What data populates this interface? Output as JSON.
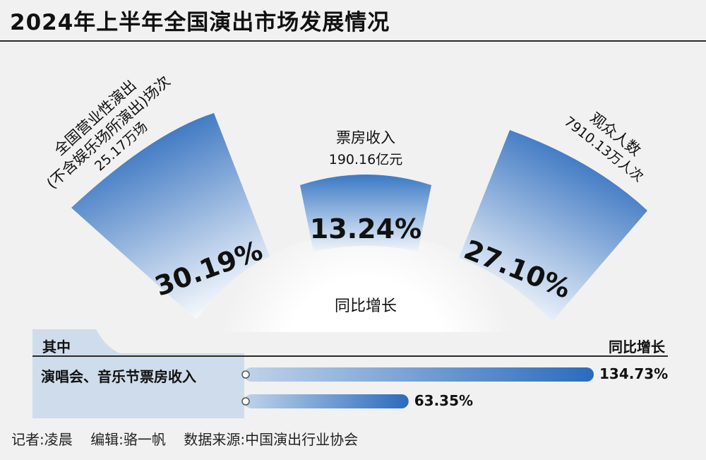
{
  "title": "2024年上半年全国演出市场发展情况",
  "center_label": "同比增长",
  "colors": {
    "blue_dark": "#2b6bbd",
    "blue_light": "#ffffff",
    "panel": "#cfdcec",
    "bg": "#f1f1f1"
  },
  "chart_data": [
    {
      "type": "radial-bar",
      "center_label": "同比增长",
      "unit": "%",
      "items": [
        {
          "name_lines": [
            "全国营业性演出",
            "(不含娱乐场所演出)场次"
          ],
          "total": "25.17万场",
          "growth": 30.19,
          "growth_label": "30.19%"
        },
        {
          "name_lines": [
            "票房收入"
          ],
          "total": "190.16亿元",
          "growth": 13.24,
          "growth_label": "13.24%"
        },
        {
          "name_lines": [
            "观众人数"
          ],
          "total": "7910.13万人次",
          "growth": 27.1,
          "growth_label": "27.10%"
        }
      ]
    },
    {
      "type": "bar",
      "section_label": "其中",
      "value_header": "同比增长",
      "categories": [
        "演唱会、音乐节票房收入",
        ""
      ],
      "values": [
        134.73,
        63.35
      ],
      "value_labels": [
        "134.73%",
        "63.35%"
      ],
      "unit": "%"
    }
  ],
  "footer": {
    "reporter": "记者:凌晨",
    "editor": "编辑:骆一帆",
    "source": "数据来源:中国演出行业协会"
  }
}
